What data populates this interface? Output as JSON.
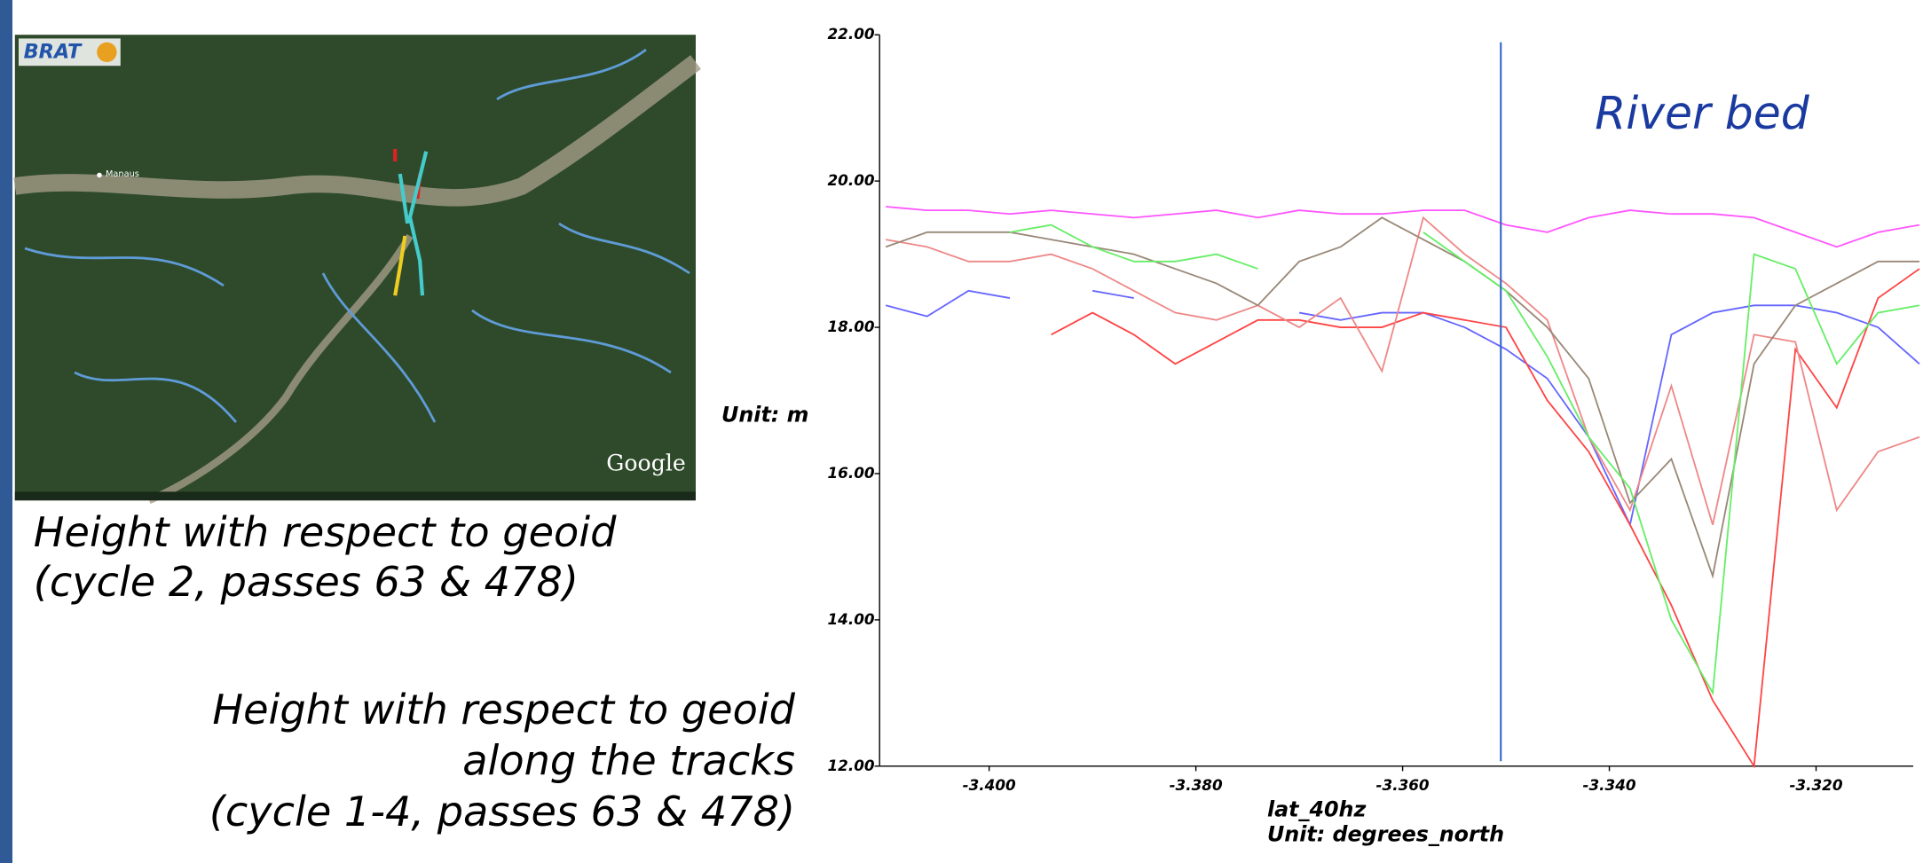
{
  "chart_data": {
    "type": "line",
    "x": [
      -3.41,
      -3.406,
      -3.402,
      -3.398,
      -3.394,
      -3.39,
      -3.386,
      -3.382,
      -3.378,
      -3.374,
      -3.37,
      -3.366,
      -3.362,
      -3.358,
      -3.354,
      -3.35,
      -3.346,
      -3.342,
      -3.338,
      -3.334,
      -3.33,
      -3.326,
      -3.322,
      -3.318,
      -3.314,
      -3.31
    ],
    "series": [
      {
        "color": "#ff55ff",
        "values": [
          19.65,
          19.6,
          19.6,
          19.55,
          19.6,
          19.55,
          19.5,
          19.55,
          19.6,
          19.5,
          19.6,
          19.55,
          19.55,
          19.6,
          19.6,
          19.4,
          19.3,
          19.5,
          19.6,
          19.55,
          19.55,
          19.5,
          19.3,
          19.1,
          19.3,
          19.4
        ]
      },
      {
        "color": "#6666ff",
        "values": [
          18.3,
          18.15,
          18.5,
          18.4,
          null,
          18.5,
          18.4,
          null,
          null,
          null,
          18.2,
          18.1,
          18.2,
          18.2,
          18.0,
          17.7,
          17.3,
          16.5,
          15.3,
          17.9,
          18.2,
          18.3,
          18.3,
          18.2,
          18.0,
          17.5
        ]
      },
      {
        "color": "#ff4444",
        "values": [
          null,
          null,
          null,
          null,
          17.9,
          18.2,
          17.9,
          17.5,
          17.8,
          18.1,
          18.1,
          18.0,
          18.0,
          18.2,
          18.1,
          18.0,
          17.0,
          16.3,
          15.3,
          14.2,
          12.9,
          12.0,
          17.7,
          16.9,
          18.4,
          18.8
        ]
      },
      {
        "color": "#ee8888",
        "values": [
          19.2,
          19.1,
          18.9,
          18.9,
          19.0,
          18.8,
          18.5,
          18.2,
          18.1,
          18.3,
          18.0,
          18.4,
          17.4,
          19.5,
          19.0,
          18.6,
          18.1,
          16.5,
          15.5,
          17.2,
          15.3,
          17.9,
          17.8,
          15.5,
          16.3,
          16.5
        ]
      },
      {
        "color": "#998877",
        "values": [
          19.1,
          19.3,
          19.3,
          19.3,
          19.2,
          19.1,
          19.0,
          18.8,
          18.6,
          18.3,
          18.9,
          19.1,
          19.5,
          19.2,
          18.9,
          18.5,
          18.0,
          17.3,
          15.6,
          16.2,
          14.6,
          17.5,
          18.3,
          18.6,
          18.9,
          18.9
        ]
      },
      {
        "color": "#66ee66",
        "values": [
          null,
          null,
          null,
          19.3,
          19.4,
          19.1,
          18.9,
          18.9,
          19.0,
          18.8,
          null,
          null,
          null,
          19.3,
          18.9,
          18.5,
          17.6,
          16.5,
          15.8,
          14.0,
          13.0,
          19.0,
          18.8,
          17.5,
          18.2,
          18.3
        ]
      }
    ],
    "xlim": [
      -3.4106,
      -3.3106
    ],
    "ylim": [
      12,
      22
    ],
    "xticks": [
      {
        "value": -3.4,
        "label": "-3.400"
      },
      {
        "value": -3.38,
        "label": "-3.380"
      },
      {
        "value": -3.36,
        "label": "-3.360"
      },
      {
        "value": -3.34,
        "label": "-3.340"
      },
      {
        "value": -3.32,
        "label": "-3.320"
      }
    ],
    "yticks": [
      {
        "value": 12,
        "label": "12.00"
      },
      {
        "value": 14,
        "label": "14.00"
      },
      {
        "value": 16,
        "label": "16.00"
      },
      {
        "value": 18,
        "label": "18.00"
      },
      {
        "value": 20,
        "label": "20.00"
      },
      {
        "value": 22,
        "label": "22.00"
      }
    ],
    "y_label": "Unit: m",
    "x_label": "lat_40hz",
    "x_unit": "Unit: degrees_north",
    "marker": {
      "x": -3.3505,
      "color": "#3366cc",
      "label": "River bed"
    }
  },
  "map": {
    "logo": "BRAT",
    "place": "Manaus",
    "watermark": "Google"
  },
  "captions": [
    {
      "lines": [
        "Height with respect to geoid",
        "(cycle 2, passes 63 & 478)"
      ]
    },
    {
      "lines": [
        "Height with respect to geoid",
        "along the tracks",
        "(cycle 1-4, passes 63 & 478)"
      ]
    }
  ]
}
